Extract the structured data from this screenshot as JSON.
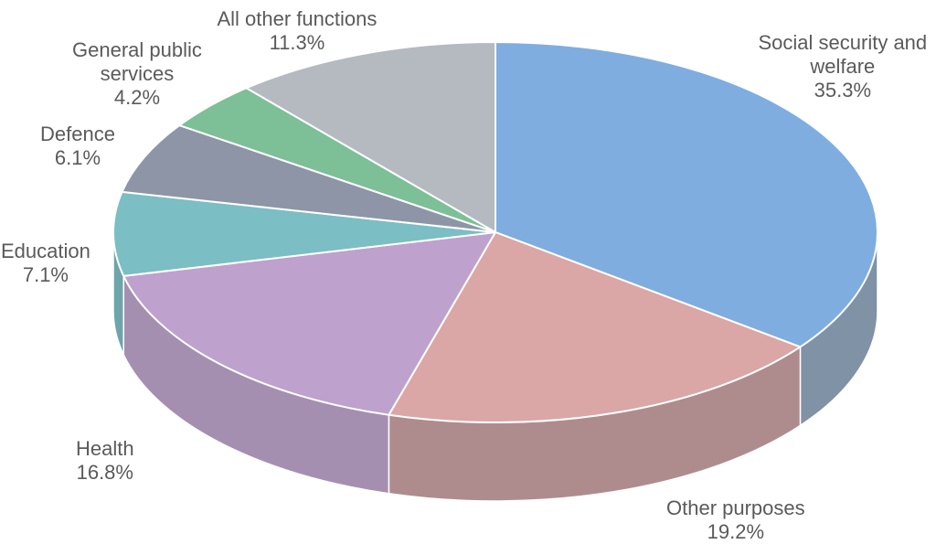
{
  "chart_data": {
    "type": "pie",
    "variant": "3d",
    "title": "",
    "slices": [
      {
        "label_lines": [
          "Social security and",
          "welfare"
        ],
        "value": 35.3,
        "value_label": "35.3%",
        "color": "#7fade0",
        "side_color": "#7f92a6"
      },
      {
        "label_lines": [
          "Other purposes"
        ],
        "value": 19.2,
        "value_label": "19.2%",
        "color": "#dba6a6",
        "side_color": "#ae8c8e"
      },
      {
        "label_lines": [
          "Health"
        ],
        "value": 16.8,
        "value_label": "16.8%",
        "color": "#bea1cd",
        "side_color": "#a58fb1"
      },
      {
        "label_lines": [
          "Education"
        ],
        "value": 7.1,
        "value_label": "7.1%",
        "color": "#7bbec4",
        "side_color": "#6ea5ab"
      },
      {
        "label_lines": [
          "Defence"
        ],
        "value": 6.1,
        "value_label": "6.1%",
        "color": "#8d95a6",
        "side_color": "#7d8493"
      },
      {
        "label_lines": [
          "General public",
          "services"
        ],
        "value": 4.2,
        "value_label": "4.2%",
        "color": "#7dbf96",
        "side_color": "#6ca783"
      },
      {
        "label_lines": [
          "All other functions"
        ],
        "value": 11.3,
        "value_label": "11.3%",
        "color": "#b5b9c0",
        "side_color": "#9ea2a9"
      }
    ]
  }
}
